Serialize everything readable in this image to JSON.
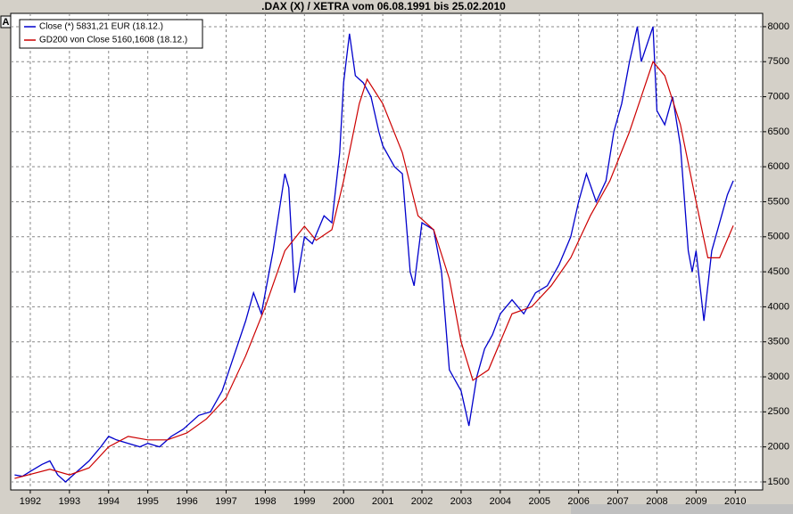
{
  "chart_data": {
    "type": "line",
    "title": ".DAX (X) / XETRA vom 06.08.1991 bis 25.02.2010",
    "button": "A",
    "series": [
      {
        "name": "Close (*) 5831,21 EUR (18.12.)",
        "color": "#0000cc",
        "x": [
          1991.6,
          1991.8,
          1992.0,
          1992.3,
          1992.5,
          1992.7,
          1992.9,
          1993.0,
          1993.2,
          1993.5,
          1993.8,
          1994.0,
          1994.2,
          1994.5,
          1994.8,
          1995.0,
          1995.3,
          1995.6,
          1995.9,
          1996.0,
          1996.3,
          1996.6,
          1996.9,
          1997.2,
          1997.5,
          1997.7,
          1997.9,
          1998.2,
          1998.5,
          1998.6,
          1998.75,
          1998.85,
          1999.0,
          1999.2,
          1999.5,
          1999.7,
          1999.9,
          2000.0,
          2000.15,
          2000.3,
          2000.5,
          2000.7,
          2000.9,
          2001.0,
          2001.3,
          2001.5,
          2001.7,
          2001.8,
          2002.0,
          2002.3,
          2002.5,
          2002.7,
          2002.9,
          2003.0,
          2003.2,
          2003.4,
          2003.6,
          2003.8,
          2004.0,
          2004.3,
          2004.6,
          2004.9,
          2005.2,
          2005.5,
          2005.8,
          2006.0,
          2006.2,
          2006.45,
          2006.7,
          2006.9,
          2007.1,
          2007.3,
          2007.5,
          2007.6,
          2007.9,
          2008.0,
          2008.2,
          2008.4,
          2008.6,
          2008.8,
          2008.9,
          2009.0,
          2009.2,
          2009.4,
          2009.6,
          2009.8,
          2009.95
        ],
        "values": [
          1600,
          1580,
          1650,
          1750,
          1800,
          1600,
          1500,
          1550,
          1650,
          1800,
          2000,
          2150,
          2100,
          2050,
          2000,
          2050,
          2000,
          2150,
          2250,
          2300,
          2450,
          2500,
          2800,
          3300,
          3800,
          4200,
          3900,
          4800,
          5900,
          5700,
          4200,
          4500,
          5000,
          4900,
          5300,
          5200,
          6200,
          7200,
          7900,
          7300,
          7200,
          7000,
          6500,
          6300,
          6000,
          5900,
          4500,
          4300,
          5200,
          5100,
          4500,
          3100,
          2900,
          2800,
          2300,
          3000,
          3400,
          3600,
          3900,
          4100,
          3900,
          4200,
          4300,
          4600,
          5000,
          5500,
          5900,
          5500,
          5800,
          6500,
          6900,
          7500,
          8000,
          7500,
          8000,
          6800,
          6600,
          7000,
          6300,
          4800,
          4500,
          4800,
          3800,
          4800,
          5200,
          5600,
          5800
        ]
      },
      {
        "name": "GD200 von Close 5160,1608 (18.12.)",
        "color": "#cc0000",
        "x": [
          1991.6,
          1992.5,
          1993.0,
          1993.5,
          1994.0,
          1994.5,
          1995.0,
          1995.5,
          1996.0,
          1996.5,
          1997.0,
          1997.5,
          1998.0,
          1998.5,
          1999.0,
          1999.3,
          1999.7,
          2000.0,
          2000.4,
          2000.6,
          2001.0,
          2001.5,
          2001.9,
          2002.3,
          2002.7,
          2003.0,
          2003.3,
          2003.7,
          2004.0,
          2004.3,
          2004.8,
          2005.3,
          2005.8,
          2006.3,
          2006.8,
          2007.3,
          2007.9,
          2008.2,
          2008.6,
          2009.0,
          2009.3,
          2009.6,
          2009.95
        ],
        "values": [
          1550,
          1680,
          1600,
          1700,
          2000,
          2150,
          2100,
          2100,
          2200,
          2400,
          2700,
          3300,
          4000,
          4800,
          5150,
          4950,
          5100,
          5800,
          6900,
          7250,
          6900,
          6200,
          5300,
          5100,
          4400,
          3500,
          2950,
          3100,
          3500,
          3900,
          4000,
          4300,
          4700,
          5300,
          5800,
          6500,
          7500,
          7300,
          6600,
          5500,
          4700,
          4700,
          5160
        ]
      }
    ],
    "xlim": [
      1991.5,
      2010.7
    ],
    "xticks": [
      1992,
      1993,
      1994,
      1995,
      1996,
      1997,
      1998,
      1999,
      2000,
      2001,
      2002,
      2003,
      2004,
      2005,
      2006,
      2007,
      2008,
      2009,
      2010
    ],
    "ylim": [
      1385,
      8190
    ],
    "yticks": [
      1500,
      2000,
      2500,
      3000,
      3500,
      4000,
      4500,
      5000,
      5500,
      6000,
      6500,
      7000,
      7500,
      8000
    ],
    "grid": true
  }
}
